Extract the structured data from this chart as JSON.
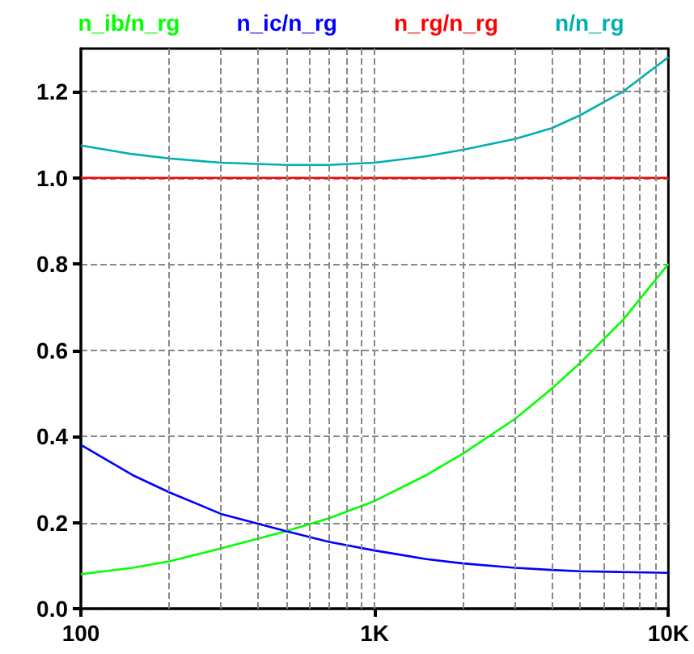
{
  "chart_data": {
    "type": "line",
    "log": "x",
    "grid": true,
    "legend": "top",
    "marker": "none",
    "line_style": "solid",
    "xlim": [
      100,
      10000
    ],
    "xticks": [
      {
        "value": 100,
        "label": "100"
      },
      {
        "value": 200,
        "label": null
      },
      {
        "value": 300,
        "label": null
      },
      {
        "value": 400,
        "label": null
      },
      {
        "value": 500,
        "label": null
      },
      {
        "value": 600,
        "label": null
      },
      {
        "value": 700,
        "label": null
      },
      {
        "value": 800,
        "label": null
      },
      {
        "value": 900,
        "label": null
      },
      {
        "value": 1000,
        "label": "1K"
      },
      {
        "value": 2000,
        "label": null
      },
      {
        "value": 3000,
        "label": null
      },
      {
        "value": 4000,
        "label": null
      },
      {
        "value": 5000,
        "label": null
      },
      {
        "value": 6000,
        "label": null
      },
      {
        "value": 7000,
        "label": null
      },
      {
        "value": 8000,
        "label": null
      },
      {
        "value": 9000,
        "label": null
      },
      {
        "value": 10000,
        "label": "10K"
      }
    ],
    "ylim": [
      0,
      1.3
    ],
    "yticks": [
      {
        "value": 0,
        "label": "0.0"
      },
      {
        "value": 0.2,
        "label": "0.2"
      },
      {
        "value": 0.4,
        "label": "0.4"
      },
      {
        "value": 0.6,
        "label": "0.6"
      },
      {
        "value": 0.8,
        "label": "0.8"
      },
      {
        "value": 1.0,
        "label": "1.0"
      },
      {
        "value": 1.2,
        "label": "1.2"
      }
    ],
    "x": [
      100,
      150,
      200,
      300,
      500,
      700,
      1000,
      1500,
      2000,
      3000,
      4000,
      5000,
      7000,
      10000
    ],
    "series": [
      {
        "name": "n_ib/n_rg",
        "color": "#00ff00",
        "values": [
          0.08,
          0.095,
          0.11,
          0.14,
          0.18,
          0.21,
          0.25,
          0.31,
          0.36,
          0.44,
          0.51,
          0.57,
          0.67,
          0.8
        ]
      },
      {
        "name": "n_ic/n_rg",
        "color": "#0000ff",
        "values": [
          0.38,
          0.31,
          0.27,
          0.22,
          0.18,
          0.155,
          0.135,
          0.115,
          0.105,
          0.095,
          0.09,
          0.087,
          0.085,
          0.083
        ]
      },
      {
        "name": "n_rg/n_rg",
        "color": "#ff0000",
        "values": [
          1.0,
          1.0,
          1.0,
          1.0,
          1.0,
          1.0,
          1.0,
          1.0,
          1.0,
          1.0,
          1.0,
          1.0,
          1.0,
          1.0
        ]
      },
      {
        "name": "n/n_rg",
        "color": "#00b0b0",
        "values": [
          1.075,
          1.055,
          1.045,
          1.035,
          1.03,
          1.03,
          1.035,
          1.05,
          1.065,
          1.09,
          1.115,
          1.145,
          1.2,
          1.28
        ]
      }
    ]
  }
}
